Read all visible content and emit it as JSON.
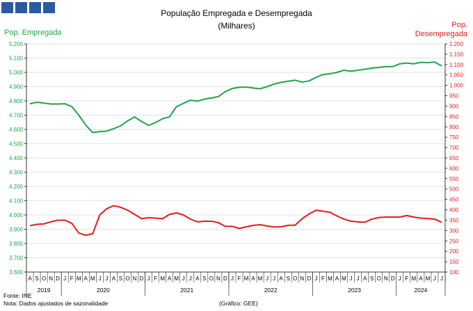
{
  "colors": {
    "employed": "#1fa34a",
    "unemployed": "#e31a1c",
    "logo": "#2a5aa0",
    "axis": "#000000",
    "grid": "#d9d9d9"
  },
  "footer": {
    "source": "Fonte: INE",
    "note": "Nota: Dados ajustados de sazonalidade",
    "credit": "(Gráfico: GEE)"
  },
  "chart_data": {
    "type": "line",
    "title": "População Empregada e Desempregada",
    "subtitle": "(Milhares)",
    "ylabel_left": "Pop. Empregada",
    "ylabel_right": [
      "Pop.",
      "Desempregada"
    ],
    "ylim_left": [
      3600,
      5200
    ],
    "ylim_right": [
      100,
      1200
    ],
    "yticks_left": [
      "3.600",
      "3.700",
      "3.800",
      "3.900",
      "4.000",
      "4.100",
      "4.200",
      "4.300",
      "4.400",
      "4.500",
      "4.600",
      "4.700",
      "4.800",
      "4.900",
      "5.000",
      "5.100",
      "5.200"
    ],
    "yticks_right": [
      "100",
      "150",
      "200",
      "250",
      "300",
      "350",
      "400",
      "450",
      "500",
      "550",
      "600",
      "650",
      "700",
      "750",
      "800",
      "850",
      "900",
      "950",
      "1.000",
      "1.050",
      "1.100",
      "1.150",
      "1.200"
    ],
    "months": [
      "A",
      "S",
      "O",
      "N",
      "D",
      "J",
      "F",
      "M",
      "A",
      "M",
      "J",
      "J",
      "A",
      "S",
      "O",
      "N",
      "D",
      "J",
      "F",
      "M",
      "A",
      "M",
      "J",
      "J",
      "A",
      "S",
      "O",
      "N",
      "D",
      "J",
      "F",
      "M",
      "A",
      "M",
      "J",
      "J",
      "A",
      "S",
      "O",
      "N",
      "D",
      "J",
      "F",
      "M",
      "A",
      "M",
      "J",
      "J",
      "A",
      "S",
      "O",
      "N",
      "D",
      "J",
      "F",
      "M",
      "A",
      "M",
      "J",
      "J"
    ],
    "years": [
      {
        "label": "2019",
        "start": 0,
        "end": 4
      },
      {
        "label": "2020",
        "start": 5,
        "end": 16
      },
      {
        "label": "2021",
        "start": 17,
        "end": 28
      },
      {
        "label": "2022",
        "start": 29,
        "end": 40
      },
      {
        "label": "2023",
        "start": 41,
        "end": 52
      },
      {
        "label": "2024",
        "start": 53,
        "end": 59
      }
    ],
    "grid": true,
    "series": [
      {
        "name": "Pop. Empregada",
        "axis": "left",
        "values": [
          4780,
          4790,
          4785,
          4778,
          4778,
          4780,
          4760,
          4700,
          4630,
          4578,
          4585,
          4588,
          4605,
          4625,
          4660,
          4688,
          4655,
          4628,
          4648,
          4675,
          4688,
          4760,
          4783,
          4805,
          4798,
          4812,
          4820,
          4830,
          4865,
          4887,
          4895,
          4897,
          4890,
          4885,
          4900,
          4918,
          4930,
          4938,
          4945,
          4932,
          4940,
          4965,
          4985,
          4990,
          5000,
          5015,
          5008,
          5015,
          5022,
          5030,
          5035,
          5040,
          5040,
          5060,
          5065,
          5060,
          5070,
          5068,
          5072,
          5045
        ]
      },
      {
        "name": "Pop. Desempregada",
        "axis": "right",
        "values": [
          323,
          330,
          332,
          342,
          350,
          350,
          335,
          288,
          277,
          285,
          375,
          405,
          420,
          412,
          398,
          378,
          357,
          362,
          360,
          357,
          378,
          385,
          375,
          355,
          342,
          345,
          345,
          338,
          320,
          320,
          310,
          318,
          325,
          328,
          322,
          317,
          318,
          325,
          326,
          357,
          380,
          398,
          393,
          388,
          370,
          355,
          345,
          342,
          340,
          355,
          363,
          365,
          365,
          365,
          372,
          365,
          360,
          358,
          355,
          340
        ]
      }
    ]
  }
}
